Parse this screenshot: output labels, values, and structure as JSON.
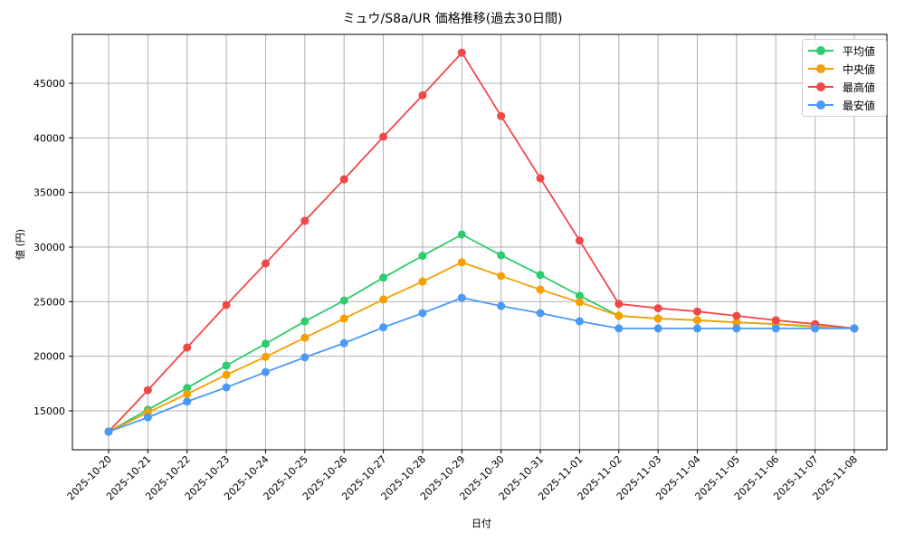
{
  "chart_data": {
    "type": "line",
    "title": "ミュウ/S8a/UR 価格推移(過去30日間)",
    "xlabel": "日付",
    "ylabel": "値 (円)",
    "ylim": [
      12300,
      49200
    ],
    "yticks": [
      15000,
      20000,
      25000,
      30000,
      35000,
      40000,
      45000
    ],
    "grid": true,
    "legend_position": "upper right",
    "categories": [
      "2025-10-20",
      "2025-10-21",
      "2025-10-22",
      "2025-10-23",
      "2025-10-24",
      "2025-10-25",
      "2025-10-26",
      "2025-10-27",
      "2025-10-28",
      "2025-10-29",
      "2025-10-30",
      "2025-10-31",
      "2025-11-01",
      "2025-11-02",
      "2025-11-03",
      "2025-11-04",
      "2025-11-05",
      "2025-11-06",
      "2025-11-07",
      "2025-11-08"
    ],
    "series": [
      {
        "name": "平均値",
        "color": "#2ecc71",
        "values": [
          13100,
          15100,
          17100,
          19150,
          21150,
          23200,
          25100,
          27200,
          29200,
          31150,
          29250,
          27450,
          25550,
          23700,
          23450,
          23300,
          23100,
          22950,
          22700,
          22550
        ]
      },
      {
        "name": "中央値",
        "color": "#f5a000",
        "values": [
          13100,
          14850,
          16550,
          18300,
          19950,
          21700,
          23450,
          25200,
          26850,
          28600,
          27350,
          26100,
          24950,
          23700,
          23450,
          23300,
          23100,
          22950,
          22750,
          22550
        ]
      },
      {
        "name": "最高値",
        "color": "#f04848",
        "values": [
          13100,
          16900,
          20800,
          24700,
          28500,
          32400,
          36200,
          40100,
          43900,
          47800,
          42000,
          36300,
          30600,
          24800,
          24400,
          24100,
          23700,
          23300,
          22950,
          22550
        ]
      },
      {
        "name": "最安値",
        "color": "#4a9af5",
        "values": [
          13100,
          14400,
          15850,
          17150,
          18550,
          19900,
          21200,
          22650,
          23950,
          25350,
          24600,
          23950,
          23200,
          22550,
          22550,
          22550,
          22550,
          22550,
          22550,
          22550
        ]
      }
    ]
  }
}
